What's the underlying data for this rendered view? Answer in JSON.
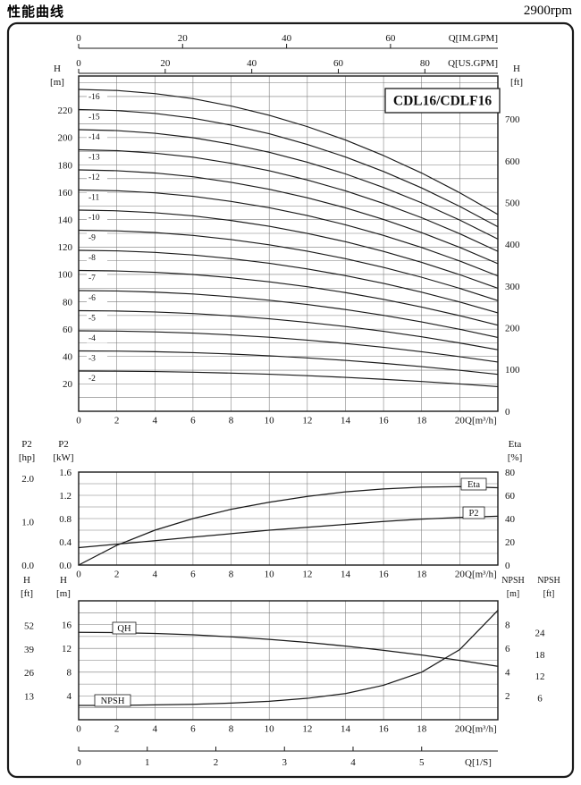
{
  "page": {
    "title": "性能曲线",
    "rpm": "2900rpm"
  },
  "chart_data": [
    {
      "id": "head-curves",
      "type": "line",
      "title": "CDL16/CDLF16",
      "x": {
        "label": "Q[m³/h]",
        "min": 0,
        "max": 22,
        "ticks": [
          0,
          2,
          4,
          6,
          8,
          10,
          12,
          14,
          16,
          18,
          20
        ]
      },
      "top_axes": [
        {
          "label": "Q[IM.GPM]",
          "ticks": [
            0,
            20,
            40,
            60
          ],
          "m3h_per_unit": 0.27276
        },
        {
          "label": "Q[US.GPM]",
          "ticks": [
            0,
            20,
            40,
            60,
            80
          ],
          "m3h_per_unit": 0.22712
        }
      ],
      "y_left": {
        "label_lines": [
          "H",
          "[m]"
        ],
        "min": 0,
        "max": 245,
        "grid_step": 10,
        "ticks": [
          20,
          40,
          60,
          80,
          100,
          120,
          140,
          160,
          180,
          200,
          220
        ]
      },
      "y_right": {
        "label_lines": [
          "H",
          "[ft]"
        ],
        "m_per_unit": 0.3048,
        "ticks": [
          0,
          100,
          200,
          300,
          400,
          500,
          600,
          700
        ]
      },
      "stage_label_prefix": "-",
      "stages": [
        16,
        15,
        14,
        13,
        12,
        11,
        10,
        9,
        8,
        7,
        6,
        5,
        4,
        3,
        2
      ],
      "q_points": [
        0,
        2,
        4,
        6,
        8,
        10,
        12,
        14,
        16,
        18,
        20,
        22
      ],
      "per_stage_head_m": [
        14.7,
        14.65,
        14.51,
        14.28,
        13.94,
        13.52,
        13.0,
        12.39,
        11.68,
        10.88,
        9.98,
        8.99
      ],
      "note": "Head of stage n = n × per_stage_head_m(Q)"
    },
    {
      "id": "power-efficiency",
      "type": "line",
      "x": {
        "label": "Q[m³/h]",
        "min": 0,
        "max": 22,
        "ticks": [
          0,
          2,
          4,
          6,
          8,
          10,
          12,
          14,
          16,
          18,
          20
        ]
      },
      "y_left_outer": {
        "label_lines": [
          "P2",
          "[hp]"
        ],
        "ticks": [
          0,
          1,
          2
        ],
        "kw_per_unit": 0.7457
      },
      "y_left_inner": {
        "label_lines": [
          "P2",
          "[kW]"
        ],
        "min": 0,
        "max": 1.6,
        "grid_step": 0.2,
        "ticks": [
          0,
          0.4,
          0.8,
          1.2,
          1.6
        ]
      },
      "y_right": {
        "label_lines": [
          "Eta",
          "[%]"
        ],
        "min": 0,
        "max": 80,
        "ticks": [
          0,
          20,
          40,
          60,
          80
        ]
      },
      "q": [
        0,
        2,
        4,
        6,
        8,
        10,
        12,
        14,
        16,
        18,
        20,
        22
      ],
      "series": [
        {
          "name": "Eta",
          "unit": "%",
          "axis": "right",
          "values": [
            0,
            17,
            30,
            40,
            48,
            54,
            59,
            63,
            65.5,
            67,
            67.5,
            66.5
          ]
        },
        {
          "name": "P2",
          "unit": "kW",
          "axis": "left",
          "values": [
            0.3,
            0.36,
            0.42,
            0.48,
            0.54,
            0.6,
            0.65,
            0.7,
            0.75,
            0.79,
            0.82,
            0.84
          ]
        }
      ]
    },
    {
      "id": "qh-npsh",
      "type": "line",
      "x": {
        "label": "Q[m³/h]",
        "min": 0,
        "max": 22,
        "ticks": [
          0,
          2,
          4,
          6,
          8,
          10,
          12,
          14,
          16,
          18,
          20
        ]
      },
      "x2": {
        "label": "Q[1/S]",
        "m3h_per_unit": 3.6,
        "ticks": [
          0,
          1,
          2,
          3,
          4,
          5
        ]
      },
      "y_left_outer": {
        "label_lines": [
          "H",
          "[ft]"
        ],
        "m_per_unit": 0.3048,
        "ticks": [
          13,
          26,
          39,
          52
        ]
      },
      "y_left_inner": {
        "label_lines": [
          "H",
          "[m]"
        ],
        "min": 0,
        "max": 20,
        "grid_step": 2,
        "ticks": [
          4,
          8,
          12,
          16
        ]
      },
      "y_right": {
        "label_lines": [
          "NPSH",
          "[m]"
        ],
        "min": 0,
        "max": 10,
        "ticks": [
          2,
          4,
          6,
          8
        ]
      },
      "y_right2": {
        "label_lines": [
          "NPSH",
          "[ft]"
        ],
        "m_per_unit": 0.3048,
        "ticks": [
          6,
          12,
          18,
          24
        ]
      },
      "q": [
        0,
        2,
        4,
        6,
        8,
        10,
        12,
        14,
        16,
        18,
        20,
        22
      ],
      "series": [
        {
          "name": "QH",
          "unit": "m",
          "axis": "left",
          "values": [
            14.7,
            14.65,
            14.51,
            14.28,
            13.94,
            13.52,
            13.0,
            12.39,
            11.68,
            10.88,
            9.98,
            8.99
          ]
        },
        {
          "name": "NPSH",
          "unit": "m",
          "axis": "right",
          "values": [
            1.2,
            1.2,
            1.25,
            1.3,
            1.4,
            1.55,
            1.8,
            2.2,
            2.9,
            4.0,
            5.9,
            9.2
          ]
        }
      ]
    }
  ]
}
